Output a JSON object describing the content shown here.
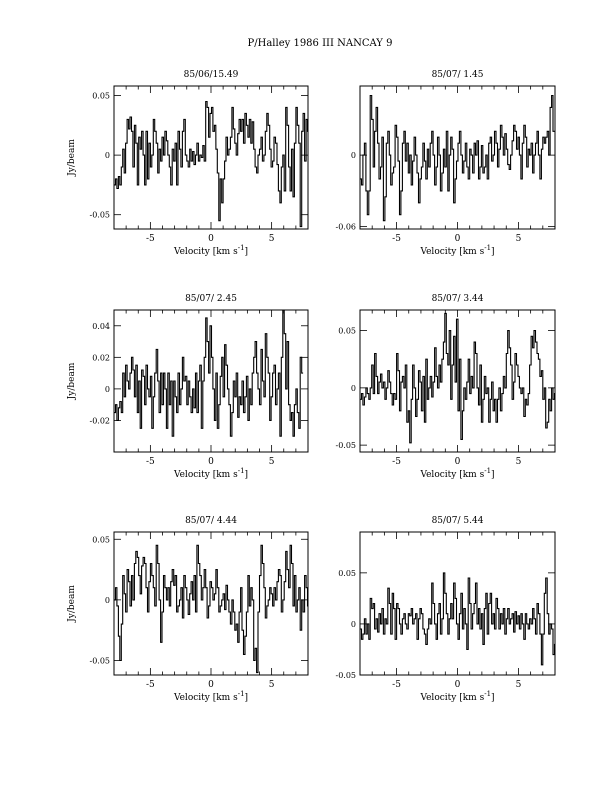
{
  "page": {
    "title": "P/Halley 1986 III   NANCAY      9"
  },
  "chart_data": [
    {
      "type": "line",
      "title": "85/06/15.49",
      "xlabel": "Velocity [km s",
      "xlabel_sup": "-1",
      "ylabel": "Jy/beam",
      "xlim": [
        -8,
        8
      ],
      "ylim": [
        -0.062,
        0.058
      ],
      "xticks": [
        "-5",
        "0",
        "5"
      ],
      "yticks": [
        {
          "v": 0.05,
          "label": "0.05"
        },
        {
          "v": 0,
          "label": "0"
        },
        {
          "v": -0.05,
          "label": "-0.05"
        }
      ],
      "series": [
        {
          "x_start": -8.0,
          "step": 0.12,
          "values": [
            -0.025,
            -0.02,
            -0.028,
            -0.018,
            -0.025,
            -0.01,
            0.005,
            -0.015,
            0.01,
            0.03,
            0.022,
            0.032,
            0.02,
            -0.01,
            0.025,
            0.01,
            -0.025,
            0.015,
            0.005,
            0.02,
            0.0,
            -0.025,
            0.02,
            -0.02,
            0.01,
            -0.01,
            0.0,
            0.03,
            0.02,
            0.01,
            -0.015,
            0.005,
            -0.005,
            0.015,
            0.0,
            0.02,
            0.012,
            0.0,
            -0.01,
            -0.025,
            0.005,
            -0.005,
            0.01,
            -0.025,
            0.02,
            0.005,
            -0.01,
            0.02,
            0.03,
            0.0,
            -0.005,
            -0.01,
            0.005,
            -0.005,
            0.003,
            -0.008,
            0.0,
            0.01,
            -0.005,
            0.0,
            -0.002,
            0.008,
            -0.005,
            0.045,
            0.04,
            0.015,
            0.035,
            0.04,
            0.02,
            0.025,
            0.005,
            -0.015,
            -0.055,
            -0.02,
            -0.04,
            -0.02,
            -0.005,
            0.015,
            0.0,
            0.005,
            0.015,
            0.04,
            0.022,
            0.01,
            0.0,
            0.018,
            0.03,
            0.02,
            0.03,
            0.01,
            0.035,
            0.025,
            0.015,
            0.03,
            0.01,
            0.028,
            0.005,
            -0.01,
            -0.015,
            0.0,
            0.005,
            0.015,
            -0.005,
            0.0,
            0.02,
            0.035,
            0.025,
            0.005,
            -0.01,
            -0.005,
            0.015,
            0.01,
            -0.008,
            -0.03,
            -0.04,
            -0.01,
            0.0,
            -0.03,
            0.04,
            0.025,
            -0.01,
            -0.03,
            0.005,
            -0.035,
            0.01,
            0.04,
            0.025,
            0.01,
            -0.06,
            0.02,
            0.035,
            -0.005,
            0.03,
            0.02,
            0.04,
            0.01
          ]
        }
      ]
    },
    {
      "type": "line",
      "title": "85/07/ 1.45",
      "xlabel": "Velocity [km s",
      "xlabel_sup": "-1",
      "ylabel": "",
      "xlim": [
        -8,
        8
      ],
      "ylim": [
        -0.062,
        0.058
      ],
      "xticks": [
        "-5",
        "0",
        "5"
      ],
      "yticks": [
        {
          "v": 0,
          "label": "0"
        },
        {
          "v": -0.06,
          "label": "-0.06"
        }
      ],
      "series": [
        {
          "x_start": -8.0,
          "step": 0.12,
          "values": [
            -0.02,
            -0.025,
            0.0,
            0.01,
            -0.03,
            -0.05,
            -0.03,
            0.05,
            0.03,
            -0.01,
            0.02,
            0.04,
            0.01,
            -0.02,
            -0.01,
            0.015,
            -0.055,
            -0.035,
            0.01,
            0.02,
            0.0,
            -0.025,
            -0.015,
            -0.01,
            0.025,
            0.015,
            -0.005,
            -0.05,
            -0.03,
            0.01,
            0.02,
            -0.005,
            0.01,
            -0.015,
            0.0,
            -0.025,
            -0.005,
            0.015,
            0.0,
            -0.015,
            -0.04,
            -0.02,
            -0.01,
            0.01,
            -0.005,
            -0.02,
            0.005,
            -0.01,
            0.01,
            0.02,
            0.0,
            -0.025,
            -0.01,
            0.015,
            0.0,
            -0.03,
            -0.015,
            0.005,
            -0.01,
            0.02,
            -0.03,
            0.0,
            0.015,
            0.005,
            -0.04,
            -0.02,
            -0.005,
            0.01,
            0.02,
            0.0,
            -0.015,
            -0.005,
            0.01,
            -0.01,
            -0.02,
            0.005,
            0.0,
            -0.015,
            0.01,
            0.0,
            0.012,
            -0.02,
            -0.01,
            0.008,
            -0.015,
            -0.01,
            0.0,
            -0.02,
            0.01,
            0.015,
            -0.005,
            0.0,
            0.02,
            0.01,
            -0.01,
            0.005,
            0.025,
            0.015,
            0.0,
            0.018,
            0.005,
            -0.008,
            -0.012,
            0.0,
            0.012,
            0.025,
            0.02,
            0.005,
            0.015,
            0.0,
            -0.02,
            0.01,
            0.025,
            0.015,
            -0.01,
            0.005,
            0.0,
            0.01,
            -0.015,
            0.0,
            0.01,
            0.02,
            0.0,
            -0.02,
            0.005,
            0.015,
            0.01,
            0.015,
            0.02,
            0.0,
            0.04,
            0.05,
            0.02
          ]
        }
      ]
    },
    {
      "type": "line",
      "title": "85/07/ 2.45",
      "xlabel": "Velocity [km s",
      "xlabel_sup": "-1",
      "ylabel": "Jy/beam",
      "xlim": [
        -8,
        8
      ],
      "ylim": [
        -0.04,
        0.05
      ],
      "xticks": [
        "-5",
        "0",
        "5"
      ],
      "yticks": [
        {
          "v": 0.04,
          "label": "0.04"
        },
        {
          "v": 0.02,
          "label": "0.02"
        },
        {
          "v": 0,
          "label": "0"
        },
        {
          "v": -0.02,
          "label": "-0.02"
        }
      ],
      "series": [
        {
          "x_start": -8.0,
          "step": 0.12,
          "values": [
            -0.015,
            -0.01,
            -0.02,
            -0.012,
            -0.008,
            -0.015,
            0.01,
            -0.005,
            0.015,
            0.005,
            0.0,
            0.01,
            0.02,
            0.012,
            -0.005,
            0.015,
            -0.015,
            0.005,
            -0.025,
            0.012,
            0.008,
            -0.01,
            0.015,
            0.0,
            -0.005,
            0.008,
            -0.025,
            -0.005,
            0.01,
            0.025,
            0.005,
            -0.015,
            0.01,
            -0.01,
            0.01,
            0.0,
            -0.025,
            0.01,
            -0.01,
            0.005,
            -0.03,
            0.005,
            -0.005,
            -0.015,
            0.01,
            -0.01,
            0.0,
            0.02,
            0.005,
            0.008,
            -0.01,
            0.005,
            -0.005,
            -0.015,
            0.0,
            -0.012,
            0.01,
            -0.015,
            0.005,
            0.015,
            -0.025,
            0.005,
            0.02,
            0.045,
            0.03,
            0.01,
            0.04,
            0.02,
            0.0,
            -0.02,
            0.01,
            -0.025,
            -0.01,
            0.008,
            0.02,
            -0.005,
            0.028,
            0.015,
            0.0,
            -0.01,
            -0.03,
            -0.015,
            0.005,
            -0.005,
            0.01,
            -0.018,
            -0.005,
            -0.01,
            0.005,
            -0.015,
            -0.005,
            0.008,
            -0.02,
            0.0,
            -0.01,
            0.01,
            0.02,
            0.03,
            0.01,
            0.0,
            -0.01,
            0.025,
            0.005,
            -0.005,
            0.035,
            0.02,
            0.01,
            -0.02,
            -0.005,
            0.01,
            0.015,
            -0.01,
            0.0,
            0.01,
            -0.03,
            0.02,
            0.05,
            0.035,
            0.0,
            0.03,
            -0.01,
            -0.02,
            -0.015,
            -0.03,
            -0.01,
            0.0,
            -0.015,
            -0.025,
            0.02,
            0.01
          ]
        }
      ]
    },
    {
      "type": "line",
      "title": "85/07/ 3.44",
      "xlabel": "Velocity [km s",
      "xlabel_sup": "-1",
      "ylabel": "",
      "xlim": [
        -8,
        8
      ],
      "ylim": [
        -0.056,
        0.068
      ],
      "xticks": [
        "-5",
        "0",
        "5"
      ],
      "yticks": [
        {
          "v": 0.05,
          "label": "0.05"
        },
        {
          "v": 0,
          "label": "0"
        },
        {
          "v": -0.05,
          "label": "-0.05"
        }
      ],
      "series": [
        {
          "x_start": -8.0,
          "step": 0.12,
          "values": [
            -0.01,
            -0.005,
            -0.015,
            -0.008,
            0.0,
            -0.005,
            -0.01,
            0.0,
            0.02,
            -0.005,
            0.03,
            0.01,
            -0.005,
            0.005,
            0.012,
            0.0,
            0.005,
            -0.01,
            0.0,
            0.015,
            0.005,
            -0.005,
            -0.015,
            -0.005,
            -0.01,
            0.03,
            0.015,
            -0.02,
            0.005,
            0.01,
            0.0,
            0.02,
            -0.03,
            -0.02,
            -0.048,
            -0.01,
            0.02,
            0.0,
            -0.025,
            -0.01,
            0.015,
            0.005,
            -0.02,
            0.01,
            -0.03,
            0.025,
            -0.01,
            0.0,
            0.01,
            -0.008,
            0.005,
            0.035,
            0.01,
            0.0,
            0.02,
            0.005,
            0.025,
            0.04,
            0.065,
            0.03,
            0.02,
            0.05,
            -0.01,
            0.02,
            0.045,
            0.005,
            0.06,
            -0.02,
            0.025,
            -0.045,
            -0.02,
            0.0,
            -0.01,
            0.005,
            0.025,
            -0.005,
            0.01,
            0.0,
            0.04,
            0.03,
            0.0,
            -0.015,
            0.02,
            -0.03,
            -0.01,
            0.01,
            -0.005,
            0.0,
            -0.03,
            -0.01,
            0.005,
            -0.02,
            -0.01,
            -0.03,
            -0.01,
            0.0,
            -0.02,
            -0.005,
            0.01,
            0.0,
            0.03,
            0.05,
            0.035,
            0.02,
            -0.01,
            0.005,
            0.03,
            0.02,
            0.01,
            0.0,
            -0.005,
            0.0,
            -0.025,
            -0.01,
            -0.015,
            -0.005,
            0.02,
            0.045,
            0.035,
            0.05,
            0.04,
            0.03,
            0.025,
            0.01,
            0.015,
            -0.01,
            0.0,
            -0.035,
            -0.03,
            -0.01,
            -0.02,
            0.0,
            -0.01,
            -0.005
          ]
        }
      ]
    },
    {
      "type": "line",
      "title": "85/07/ 4.44",
      "xlabel": "Velocity [km s",
      "xlabel_sup": "-1",
      "ylabel": "Jy/beam",
      "xlim": [
        -8,
        8
      ],
      "ylim": [
        -0.062,
        0.056
      ],
      "xticks": [
        "-5",
        "0",
        "5"
      ],
      "yticks": [
        {
          "v": 0.05,
          "label": "0.05"
        },
        {
          "v": 0,
          "label": "0"
        },
        {
          "v": -0.05,
          "label": "-0.05"
        }
      ],
      "series": [
        {
          "x_start": -8.0,
          "step": 0.12,
          "values": [
            0.0,
            0.01,
            -0.005,
            -0.03,
            -0.05,
            -0.02,
            0.02,
            0.005,
            -0.01,
            0.025,
            0.015,
            -0.005,
            0.02,
            0.0,
            0.03,
            0.04,
            0.035,
            0.02,
            0.005,
            0.028,
            0.035,
            0.03,
            0.01,
            -0.01,
            0.015,
            0.03,
            0.02,
            0.01,
            -0.005,
            0.045,
            0.03,
            0.0,
            -0.035,
            -0.01,
            0.02,
            0.01,
            0.0,
            0.01,
            -0.005,
            0.015,
            0.025,
            0.012,
            0.02,
            -0.01,
            -0.005,
            0.0,
            0.01,
            -0.015,
            0.02,
            0.01,
            0.0,
            -0.012,
            0.005,
            0.015,
            0.0,
            0.02,
            -0.01,
            0.045,
            0.03,
            0.02,
            0.0,
            0.01,
            0.025,
            0.01,
            -0.015,
            -0.005,
            0.015,
            0.01,
            0.0,
            0.005,
            0.025,
            0.01,
            -0.01,
            -0.005,
            0.0,
            0.005,
            -0.008,
            0.012,
            0.0,
            -0.01,
            -0.02,
            0.0,
            -0.01,
            -0.025,
            -0.02,
            -0.035,
            -0.01,
            0.01,
            -0.025,
            -0.045,
            -0.03,
            -0.01,
            0.02,
            -0.005,
            0.01,
            0.0,
            -0.05,
            -0.04,
            -0.06,
            -0.01,
            0.02,
            0.045,
            0.03,
            0.01,
            -0.015,
            -0.005,
            0.0,
            0.01,
            0.005,
            -0.005,
            0.01,
            0.0,
            0.015,
            0.025,
            0.02,
            -0.01,
            0.0,
            0.015,
            0.04,
            0.025,
            0.01,
            0.045,
            0.03,
            -0.005,
            0.02,
            -0.01,
            0.0,
            0.01,
            -0.025,
            0.0,
            -0.01,
            0.02,
            0.01,
            -0.005,
            -0.005,
            -0.01,
            0.0,
            -0.008
          ]
        }
      ]
    },
    {
      "type": "line",
      "title": "85/07/ 5.44",
      "xlabel": "Velocity [km s",
      "xlabel_sup": "-1",
      "ylabel": "",
      "xlim": [
        -8,
        8
      ],
      "ylim": [
        -0.05,
        0.09
      ],
      "xticks": [
        "-5",
        "0",
        "5"
      ],
      "yticks": [
        {
          "v": 0.05,
          "label": "0.05"
        },
        {
          "v": 0,
          "label": "0"
        },
        {
          "v": -0.05,
          "label": "-0.05"
        }
      ],
      "series": [
        {
          "x_start": -8.0,
          "step": 0.12,
          "values": [
            -0.005,
            -0.015,
            -0.01,
            0.005,
            -0.01,
            0.0,
            -0.015,
            0.025,
            0.015,
            0.02,
            -0.005,
            0.005,
            -0.008,
            0.01,
            0.0,
            0.015,
            -0.01,
            0.005,
            0.0,
            0.035,
            0.02,
            -0.01,
            0.03,
            0.015,
            -0.015,
            0.02,
            0.015,
            0.0,
            -0.01,
            0.005,
            0.01,
            0.0,
            -0.005,
            0.01,
            0.008,
            0.015,
            0.0,
            0.005,
            0.01,
            -0.015,
            0.005,
            0.015,
            0.01,
            -0.005,
            -0.01,
            -0.02,
            -0.005,
            0.005,
            0.0,
            0.04,
            0.02,
            0.0,
            -0.015,
            0.01,
            0.02,
            -0.01,
            0.005,
            0.05,
            0.03,
            0.01,
            -0.01,
            0.005,
            0.02,
            0.005,
            0.04,
            0.025,
            0.0,
            -0.015,
            0.01,
            0.03,
            -0.005,
            0.015,
            0.0,
            -0.025,
            0.045,
            0.02,
            -0.005,
            0.01,
            0.02,
            0.04,
            0.0,
            0.015,
            -0.005,
            0.01,
            -0.02,
            0.015,
            0.03,
            -0.01,
            0.02,
            0.03,
            0.0,
            0.01,
            -0.005,
            0.025,
            0.015,
            -0.005,
            0.01,
            0.0,
            0.015,
            -0.01,
            0.005,
            0.015,
            0.0,
            0.005,
            0.01,
            -0.008,
            0.012,
            0.0,
            0.008,
            -0.005,
            0.01,
            0.0,
            -0.015,
            0.01,
            0.0,
            -0.005,
            0.005,
            0.0,
            0.015,
            0.005,
            -0.01,
            0.02,
            0.01,
            -0.01,
            -0.04,
            -0.01,
            0.03,
            0.045,
            0.01,
            -0.01,
            0.0,
            -0.005,
            -0.03,
            -0.02,
            -0.015
          ]
        }
      ]
    }
  ]
}
